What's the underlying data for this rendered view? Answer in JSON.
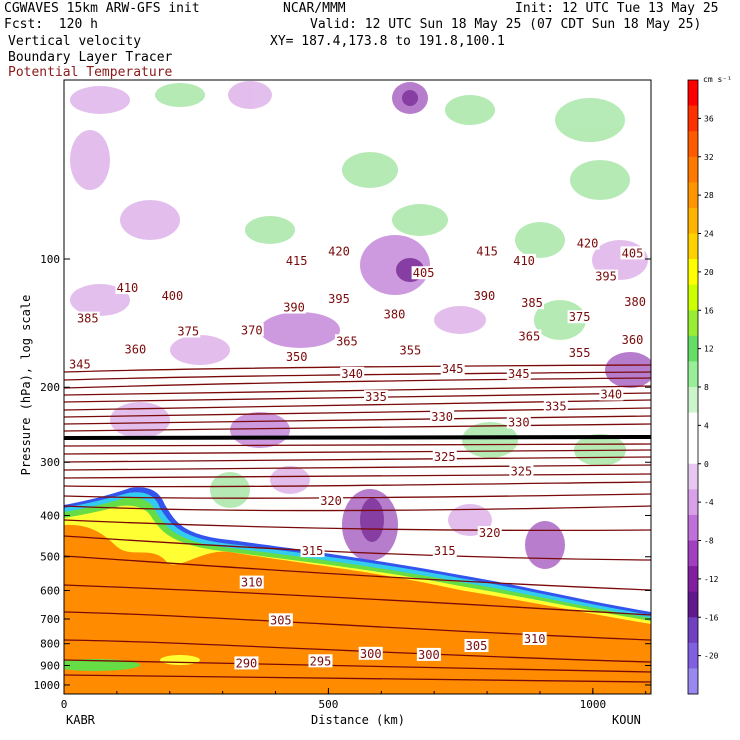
{
  "header": {
    "model": "CGWAVES 15km ARW-GFS init",
    "fcst": "Fcst:  120 h",
    "org": "NCAR/MMM",
    "init": "Init: 12 UTC Tue 13 May 25",
    "valid": "Valid: 12 UTC Sun 18 May 25 (07 CDT Sun 18 May 25)",
    "xy": "XY= 187.4,173.8 to 191.8,100.1",
    "field1": "Vertical velocity",
    "field2": "Boundary Layer Tracer",
    "field3": "Potential Temperature"
  },
  "colors": {
    "theta_line": "#7a0a0a",
    "bl_tracer": "#ff8c00",
    "up_green": "#66dd66",
    "down_purple": "#aa44bb"
  },
  "chart_data": {
    "type": "cross-section",
    "xlabel": "Distance (km)",
    "ylabel": "Pressure (hPa), log scale",
    "xlim": [
      0,
      1110
    ],
    "x_ticks": [
      "0",
      "500",
      "1000"
    ],
    "x_tick_values": [
      0,
      500,
      1000
    ],
    "y_ticks": [
      "100",
      "200",
      "300",
      "400",
      "500",
      "600",
      "700",
      "800",
      "900",
      "1000"
    ],
    "y_tick_values": [
      100,
      200,
      300,
      400,
      500,
      600,
      700,
      800,
      900,
      1000
    ],
    "left_station": "KABR",
    "right_station": "KOUN",
    "colorbar": {
      "unit": "cm s⁻¹",
      "labels": [
        "36",
        "32",
        "28",
        "24",
        "20",
        "16",
        "12",
        "8",
        "4",
        "0",
        "-4",
        "-8",
        "-12",
        "-16",
        "-20"
      ],
      "label_values": [
        36,
        32,
        28,
        24,
        20,
        16,
        12,
        8,
        4,
        0,
        -4,
        -8,
        -12,
        -16,
        -20
      ],
      "colors": [
        "#ff0000",
        "#ff3000",
        "#ff5a00",
        "#ff7800",
        "#ff9600",
        "#ffb400",
        "#ffd200",
        "#ffff00",
        "#ccff00",
        "#99ee33",
        "#66dd66",
        "#99ee99",
        "#ccf5cc",
        "#ffffff",
        "#ffffff",
        "#e8c8f0",
        "#d8a0e8",
        "#c070d8",
        "#a040c0",
        "#8020a0",
        "#60188a",
        "#7040c0",
        "#8060e0",
        "#9888f0"
      ]
    },
    "theta_labels": [
      {
        "value": "420",
        "x_km": 520,
        "p": 96
      },
      {
        "value": "415",
        "x_km": 440,
        "p": 101
      },
      {
        "value": "415",
        "x_km": 800,
        "p": 96
      },
      {
        "value": "420",
        "x_km": 990,
        "p": 92
      },
      {
        "value": "405",
        "x_km": 1075,
        "p": 97
      },
      {
        "value": "410",
        "x_km": 120,
        "p": 117
      },
      {
        "value": "400",
        "x_km": 205,
        "p": 122
      },
      {
        "value": "405",
        "x_km": 680,
        "p": 108
      },
      {
        "value": "410",
        "x_km": 870,
        "p": 101
      },
      {
        "value": "395",
        "x_km": 1025,
        "p": 110
      },
      {
        "value": "390",
        "x_km": 435,
        "p": 130
      },
      {
        "value": "395",
        "x_km": 520,
        "p": 124
      },
      {
        "value": "390",
        "x_km": 795,
        "p": 122
      },
      {
        "value": "385",
        "x_km": 885,
        "p": 127
      },
      {
        "value": "380",
        "x_km": 1080,
        "p": 126
      },
      {
        "value": "385",
        "x_km": 45,
        "p": 138
      },
      {
        "value": "375",
        "x_km": 235,
        "p": 148
      },
      {
        "value": "370",
        "x_km": 355,
        "p": 147
      },
      {
        "value": "380",
        "x_km": 625,
        "p": 135
      },
      {
        "value": "375",
        "x_km": 975,
        "p": 137
      },
      {
        "value": "360",
        "x_km": 135,
        "p": 163
      },
      {
        "value": "365",
        "x_km": 535,
        "p": 156
      },
      {
        "value": "365",
        "x_km": 880,
        "p": 152
      },
      {
        "value": "360",
        "x_km": 1075,
        "p": 155
      },
      {
        "value": "345",
        "x_km": 30,
        "p": 177
      },
      {
        "value": "350",
        "x_km": 440,
        "p": 170
      },
      {
        "value": "355",
        "x_km": 655,
        "p": 164
      },
      {
        "value": "355",
        "x_km": 975,
        "p": 166
      },
      {
        "value": "340",
        "x_km": 545,
        "p": 186
      },
      {
        "value": "345",
        "x_km": 735,
        "p": 181
      },
      {
        "value": "345",
        "x_km": 860,
        "p": 186
      },
      {
        "value": "335",
        "x_km": 590,
        "p": 211
      },
      {
        "value": "340",
        "x_km": 1035,
        "p": 208
      },
      {
        "value": "335",
        "x_km": 930,
        "p": 222
      },
      {
        "value": "330",
        "x_km": 715,
        "p": 235
      },
      {
        "value": "330",
        "x_km": 860,
        "p": 242
      },
      {
        "value": "325",
        "x_km": 720,
        "p": 292
      },
      {
        "value": "325",
        "x_km": 865,
        "p": 315
      },
      {
        "value": "320",
        "x_km": 505,
        "p": 370
      },
      {
        "value": "320",
        "x_km": 805,
        "p": 440
      },
      {
        "value": "315",
        "x_km": 470,
        "p": 485
      },
      {
        "value": "315",
        "x_km": 720,
        "p": 485
      },
      {
        "value": "310",
        "x_km": 355,
        "p": 575
      },
      {
        "value": "310",
        "x_km": 890,
        "p": 780
      },
      {
        "value": "305",
        "x_km": 410,
        "p": 705
      },
      {
        "value": "305",
        "x_km": 780,
        "p": 810
      },
      {
        "value": "300",
        "x_km": 580,
        "p": 845
      },
      {
        "value": "300",
        "x_km": 690,
        "p": 850
      },
      {
        "value": "295",
        "x_km": 485,
        "p": 880
      },
      {
        "value": "290",
        "x_km": 345,
        "p": 890
      }
    ]
  }
}
